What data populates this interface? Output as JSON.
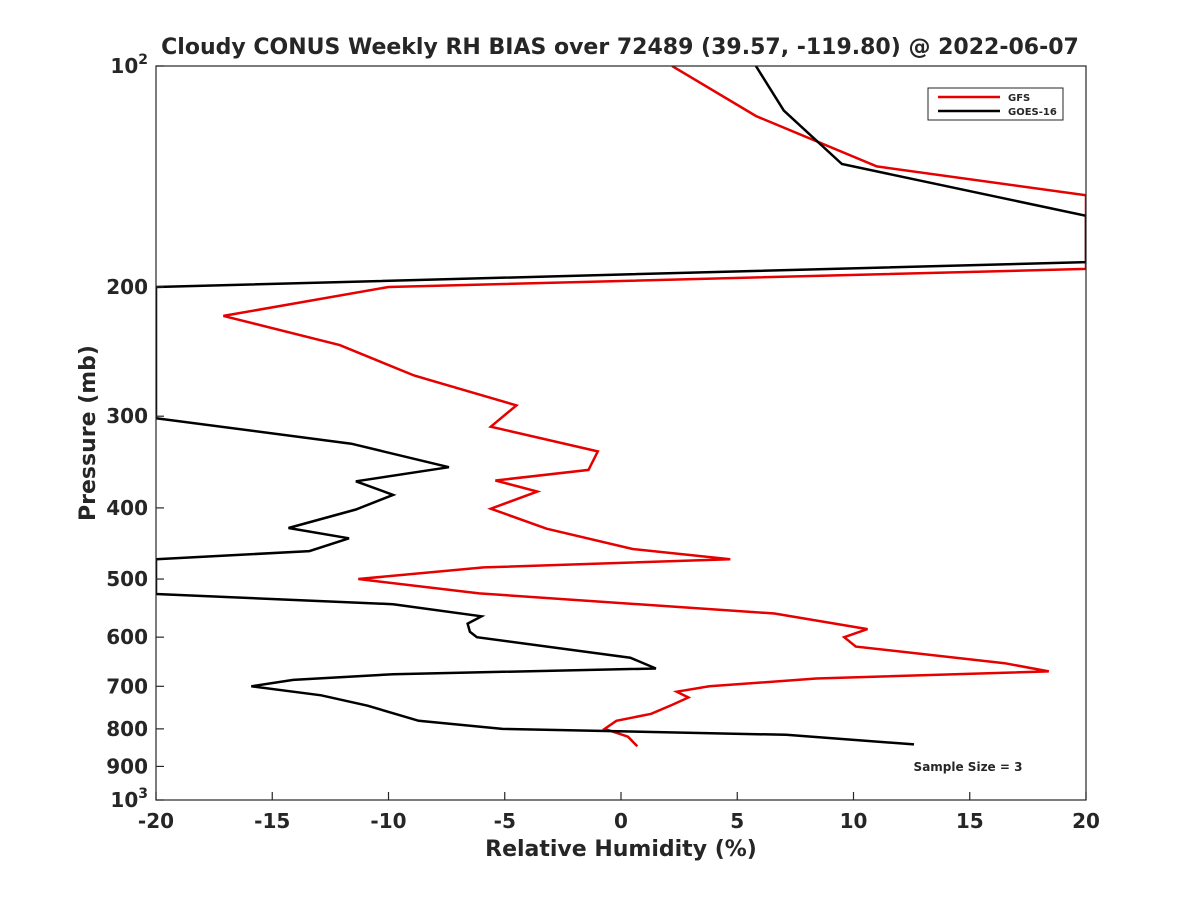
{
  "chart_data": {
    "type": "line",
    "title": "Cloudy CONUS Weekly RH BIAS over 72489 (39.57, -119.80) @ 2022-06-07",
    "xlabel": "Relative Humidity (%)",
    "ylabel": "Pressure (mb)",
    "xlim": [
      -20,
      20
    ],
    "ylim": [
      100,
      1000
    ],
    "y_scale": "log",
    "y_reversed": true,
    "x_ticks": [
      "-20",
      "-15",
      "-10",
      "-5",
      "0",
      "5",
      "10",
      "15",
      "20"
    ],
    "y_ticks": [
      {
        "value": 100,
        "label": "10",
        "exp": "2"
      },
      {
        "value": 200,
        "label": "200"
      },
      {
        "value": 300,
        "label": "300"
      },
      {
        "value": 400,
        "label": "400"
      },
      {
        "value": 500,
        "label": "500"
      },
      {
        "value": 600,
        "label": "600"
      },
      {
        "value": 700,
        "label": "700"
      },
      {
        "value": 800,
        "label": "800"
      },
      {
        "value": 900,
        "label": "900"
      },
      {
        "value": 1000,
        "label": "10",
        "exp": "3"
      }
    ],
    "legend_position": "top-right",
    "annotation": "Sample Size = 3",
    "series": [
      {
        "name": "GFS",
        "color": "#e60000",
        "points": [
          [
            2.2,
            100
          ],
          [
            5.8,
            117
          ],
          [
            11.0,
            137
          ],
          [
            20,
            150
          ],
          [
            20,
            189
          ],
          [
            -10.0,
            200
          ],
          [
            -17.1,
            219
          ],
          [
            -12.1,
            240
          ],
          [
            -8.9,
            264
          ],
          [
            -4.5,
            290
          ],
          [
            -5.6,
            310
          ],
          [
            -1.0,
            335
          ],
          [
            -1.4,
            355
          ],
          [
            -5.4,
            367
          ],
          [
            -3.6,
            380
          ],
          [
            -5.6,
            401
          ],
          [
            -3.2,
            427
          ],
          [
            0.5,
            455
          ],
          [
            4.7,
            470
          ],
          [
            -5.9,
            482
          ],
          [
            -11.3,
            500
          ],
          [
            -6.1,
            523
          ],
          [
            6.6,
            557
          ],
          [
            10.6,
            585
          ],
          [
            9.6,
            600
          ],
          [
            10.1,
            618
          ],
          [
            16.5,
            651
          ],
          [
            18.4,
            668
          ],
          [
            8.4,
            683
          ],
          [
            3.8,
            700
          ],
          [
            2.4,
            712
          ],
          [
            2.9,
            725
          ],
          [
            2.2,
            742
          ],
          [
            1.3,
            763
          ],
          [
            -0.2,
            780
          ],
          [
            -0.7,
            800
          ],
          [
            0.3,
            820
          ],
          [
            0.7,
            845
          ]
        ]
      },
      {
        "name": "GOES-16",
        "color": "#000000",
        "points": [
          [
            5.8,
            100
          ],
          [
            7.0,
            115
          ],
          [
            9.5,
            136
          ],
          [
            20,
            160
          ],
          [
            20,
            185
          ],
          [
            -20,
            200
          ],
          [
            -20,
            302
          ],
          [
            -11.6,
            327
          ],
          [
            -7.4,
            352
          ],
          [
            -11.4,
            368
          ],
          [
            -9.8,
            384
          ],
          [
            -11.4,
            402
          ],
          [
            -14.3,
            426
          ],
          [
            -11.7,
            440
          ],
          [
            -13.4,
            458
          ],
          [
            -20,
            470
          ],
          [
            -20,
            524
          ],
          [
            -9.8,
            541
          ],
          [
            -6.0,
            562
          ],
          [
            -6.6,
            575
          ],
          [
            -6.5,
            590
          ],
          [
            -6.2,
            600
          ],
          [
            0.4,
            640
          ],
          [
            1.5,
            662
          ],
          [
            -9.8,
            674
          ],
          [
            -14.1,
            686
          ],
          [
            -15.9,
            700
          ],
          [
            -12.9,
            720
          ],
          [
            -10.9,
            744
          ],
          [
            -8.7,
            780
          ],
          [
            -5.1,
            800
          ],
          [
            7.1,
            815
          ],
          [
            12.6,
            840
          ]
        ]
      }
    ]
  }
}
